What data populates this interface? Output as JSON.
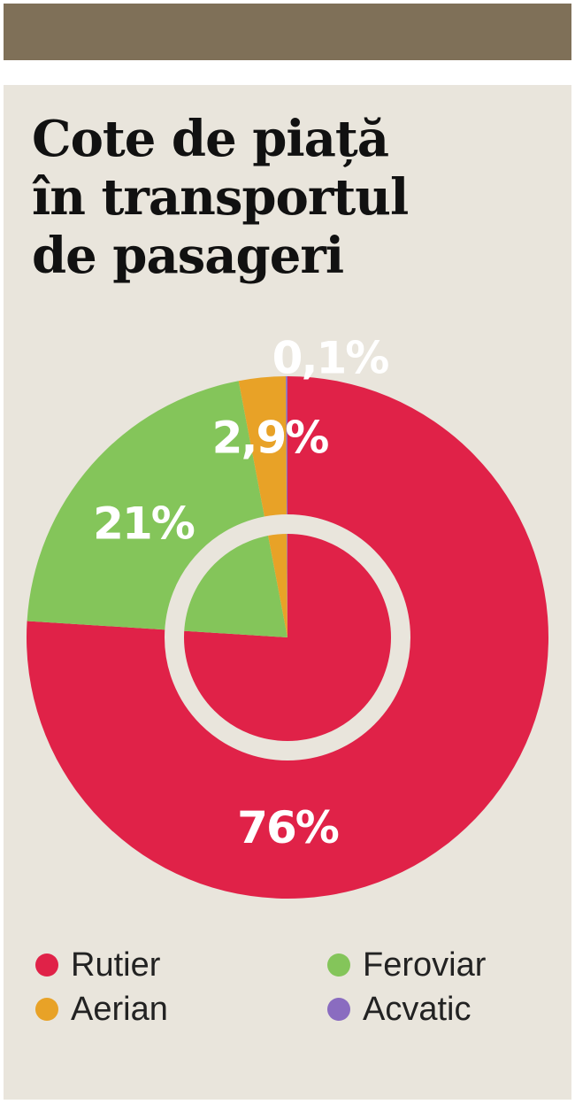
{
  "header": {
    "bar_color": "#7f7058"
  },
  "title_lines": [
    "Cote de piață",
    "în transportul",
    "de pasageri"
  ],
  "chart_data": {
    "type": "pie",
    "title": "Cote de piață în transportul de pasageri",
    "series": [
      {
        "name": "Rutier",
        "value": 76,
        "label": "76%",
        "color": "#e02248"
      },
      {
        "name": "Feroviar",
        "value": 21,
        "label": "21%",
        "color": "#84c55a"
      },
      {
        "name": "Aerian",
        "value": 2.9,
        "label": "2,9%",
        "color": "#e8a227"
      },
      {
        "name": "Acvatic",
        "value": 0.1,
        "label": "0,1%",
        "color": "#8a6cc0"
      }
    ],
    "legend_position": "bottom"
  },
  "legend": [
    {
      "label": "Rutier",
      "color": "#e02248"
    },
    {
      "label": "Feroviar",
      "color": "#84c55a"
    },
    {
      "label": "Aerian",
      "color": "#e8a227"
    },
    {
      "label": "Acvatic",
      "color": "#8a6cc0"
    }
  ]
}
